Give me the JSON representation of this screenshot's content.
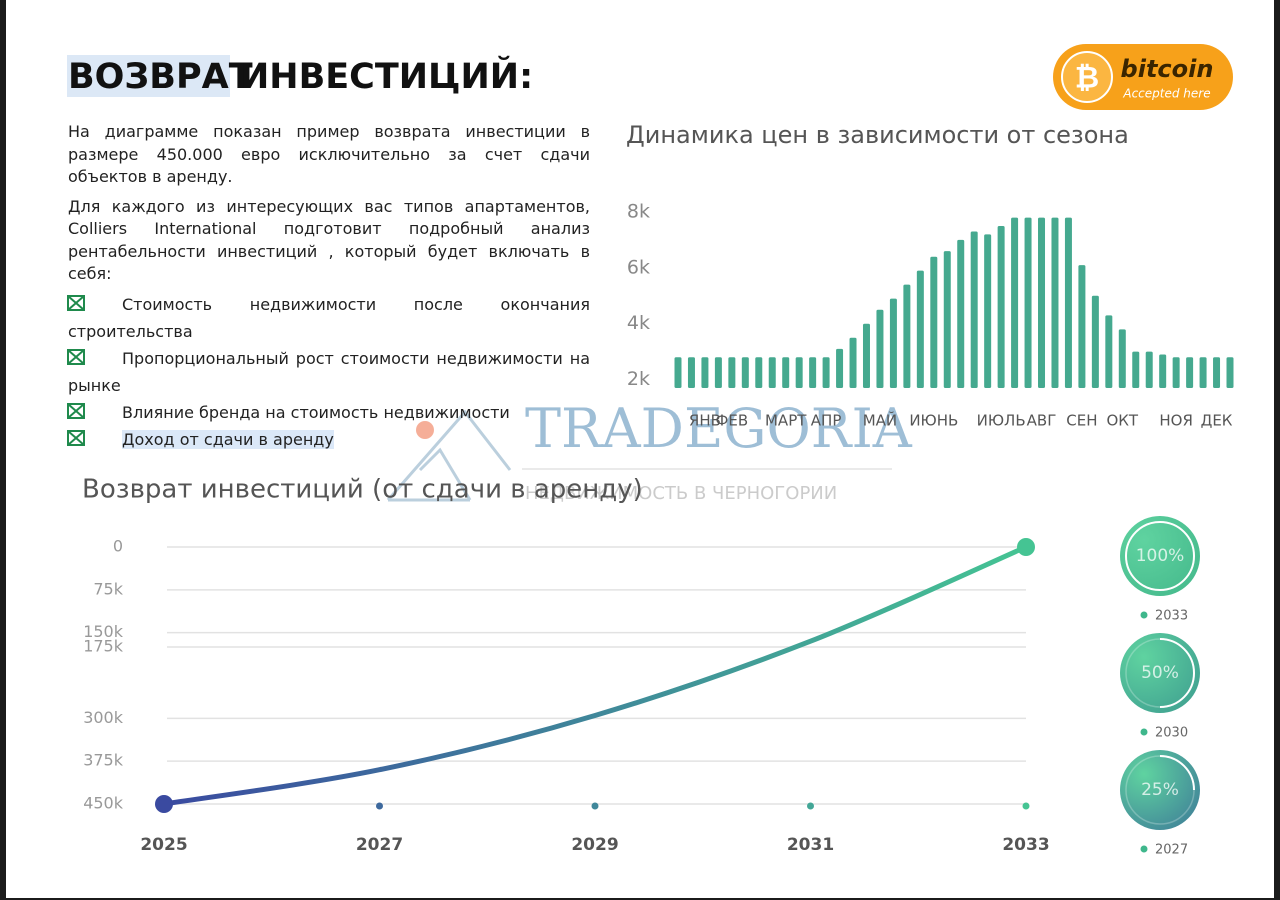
{
  "header": {
    "title_highlight": "ВОЗВРАТ",
    "title_rest": "ИНВЕСТИЦИЙ:"
  },
  "badge": {
    "symbol": "₿",
    "name": "bitcoin",
    "tagline": "Accepted here"
  },
  "body": {
    "paragraphs": [
      "На диаграмме показан пример возврата инвестиции в размере 450.000 евро исключительно за счет сдачи объектов в аренду.",
      "Для каждого из интересующих вас типов апартаментов, Colliers International подготовит подробный анализ рентабельности инвестиций , который будет включать в себя:"
    ],
    "bullets": [
      "Стоимость недвижимости после окончания строительства",
      "Пропорциональный рост стоимости недвижимости на рынке",
      "Влияние бренда на стоимость недвижимости",
      "Доход от сдачи в аренду"
    ]
  },
  "watermark": {
    "name": "TRADEGORIA",
    "tagline": "НЕДВИЖИМОСТЬ В ЧЕРНОГОРИИ"
  },
  "chart_data": [
    {
      "type": "bar",
      "title": "Динамика цен в зависимости от сезона",
      "categories": [
        null,
        null,
        "ЯНВ",
        null,
        "ФЕВ",
        null,
        null,
        null,
        "МАРТ",
        null,
        null,
        "АПР",
        null,
        null,
        null,
        "МАЙ",
        null,
        null,
        null,
        "ИЮНЬ",
        null,
        null,
        null,
        null,
        "ИЮЛЬ",
        null,
        null,
        "АВГ",
        null,
        null,
        "СЕН",
        null,
        null,
        "ОКТ",
        null,
        null,
        null,
        "НОЯ",
        null,
        null,
        "ДЕК",
        null
      ],
      "values": [
        2800,
        2800,
        2800,
        2800,
        2800,
        2800,
        2800,
        2800,
        2800,
        2800,
        2800,
        2800,
        3100,
        3500,
        4000,
        4500,
        4900,
        5400,
        5900,
        6400,
        6600,
        7000,
        7300,
        7200,
        7500,
        7800,
        7800,
        7800,
        7800,
        7800,
        6100,
        5000,
        4300,
        3800,
        3000,
        3000,
        2900,
        2800,
        2800,
        2800,
        2800,
        2800
      ],
      "color": "#45a98f",
      "ylim": [
        1700,
        8000
      ],
      "yticks": [
        {
          "value": 2000,
          "label": "2k"
        },
        {
          "value": 4000,
          "label": "4k"
        },
        {
          "value": 6000,
          "label": "6k"
        },
        {
          "value": 8000,
          "label": "8k"
        }
      ],
      "grid": false
    },
    {
      "type": "line",
      "title": "Возврат инвестиций (от сдачи в аренду)",
      "x": [
        2025,
        2027,
        2029,
        2031,
        2033
      ],
      "values": [
        450000,
        390000,
        295000,
        165000,
        0
      ],
      "colors": [
        "#3a4aa0",
        "#45c493"
      ],
      "xlim": [
        2025,
        2033
      ],
      "xticks": [
        2025,
        2027,
        2029,
        2031,
        2033
      ],
      "ylim": [
        450000,
        0
      ],
      "yticks": [
        0,
        {
          "value": 75000,
          "label": "75k"
        },
        {
          "value": 150000,
          "label": "150k"
        },
        {
          "value": 175000,
          "label": "175k"
        },
        {
          "value": 300000,
          "label": "300k"
        },
        {
          "value": 375000,
          "label": "375k"
        },
        {
          "value": 450000,
          "label": "450k"
        }
      ],
      "grid": true
    },
    {
      "type": "progress",
      "categories": [
        "2033",
        "2030",
        "2027"
      ],
      "values": [
        100,
        50,
        25
      ],
      "value_labels": [
        "100%",
        "50%",
        "25%"
      ],
      "colors": [
        "#45b98c",
        "#3f9f90",
        "#3f7f98"
      ]
    }
  ]
}
